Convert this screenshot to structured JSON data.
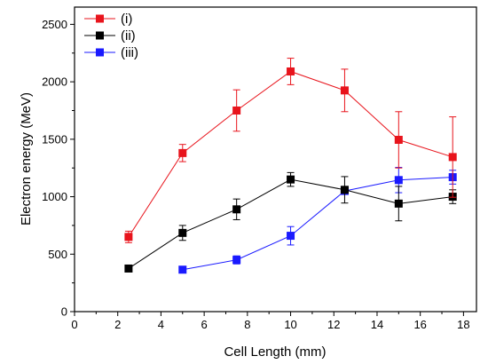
{
  "chart_data": {
    "type": "line",
    "xlabel": "Cell Length (mm)",
    "ylabel": "Electron energy (MeV)",
    "xlim": [
      0,
      18.6
    ],
    "ylim": [
      0,
      2650
    ],
    "xticks": [
      0,
      2,
      4,
      6,
      8,
      10,
      12,
      14,
      16,
      18
    ],
    "yticks": [
      0,
      500,
      1000,
      1500,
      2000,
      2500
    ],
    "grid": false,
    "legend_position": "top-left",
    "series": [
      {
        "name": "(i)",
        "color": "#e8141c",
        "marker": "square",
        "x": [
          2.5,
          5,
          7.5,
          10,
          12.5,
          15,
          17.5
        ],
        "y": [
          650,
          1380,
          1750,
          2090,
          1925,
          1495,
          1345
        ],
        "err": [
          50,
          75,
          180,
          115,
          185,
          245,
          350
        ]
      },
      {
        "name": "(ii)",
        "color": "#000000",
        "marker": "square",
        "x": [
          2.5,
          5,
          7.5,
          10,
          12.5,
          15,
          17.5
        ],
        "y": [
          375,
          685,
          890,
          1150,
          1060,
          940,
          1000
        ],
        "err": [
          0,
          65,
          90,
          60,
          115,
          150,
          60
        ]
      },
      {
        "name": "(iii)",
        "color": "#1a1aff",
        "marker": "square",
        "x": [
          5,
          7.5,
          10,
          12.5,
          15,
          17.5
        ],
        "y": [
          365,
          450,
          660,
          1050,
          1145,
          1170
        ],
        "err": [
          0,
          35,
          80,
          25,
          110,
          60
        ]
      }
    ]
  }
}
